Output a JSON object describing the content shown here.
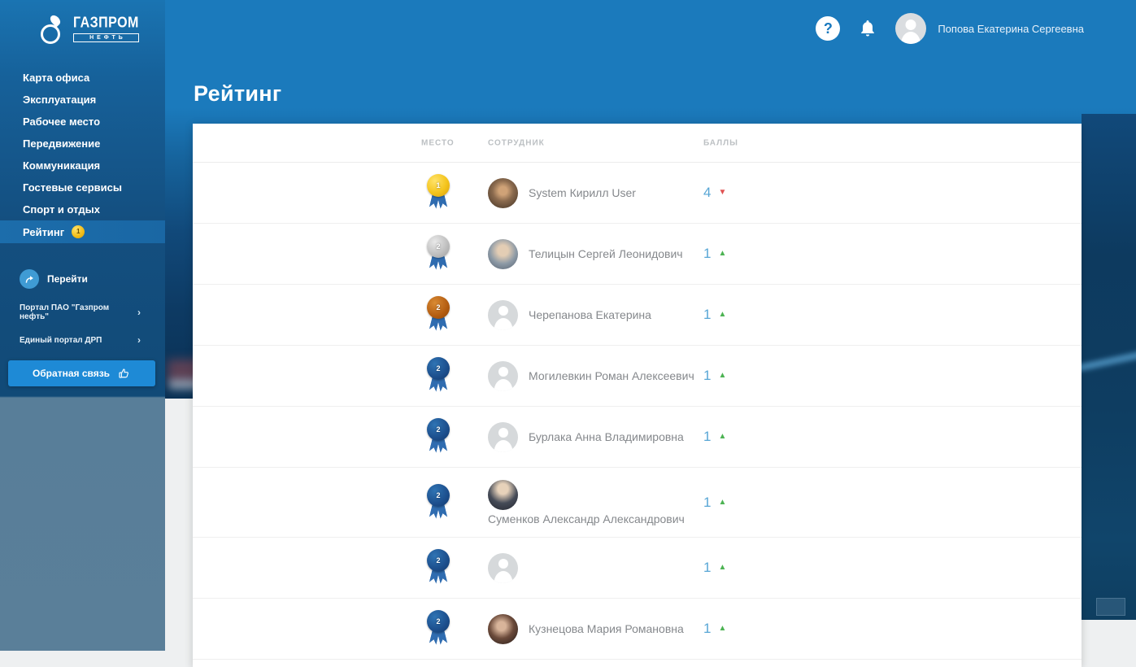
{
  "brand": {
    "name_top": "ГАЗПРОМ",
    "name_bottom": "НЕФТЬ"
  },
  "header": {
    "help_icon": "?",
    "user_name": "Попова Екатерина Сергеевна"
  },
  "sidebar": {
    "items": [
      {
        "label": "Карта офиса"
      },
      {
        "label": "Эксплуатация"
      },
      {
        "label": "Рабочее место"
      },
      {
        "label": "Передвижение"
      },
      {
        "label": "Коммуникация"
      },
      {
        "label": "Гостевые сервисы"
      },
      {
        "label": "Спорт и отдых"
      },
      {
        "label": "Рейтинг",
        "badge": "1",
        "active": true
      }
    ],
    "go_label": "Перейти",
    "external_links": [
      {
        "label": "Портал ПАО \"Газпром нефть\""
      },
      {
        "label": "Единый портал ДРП"
      }
    ],
    "feedback_label": "Обратная связь"
  },
  "page": {
    "title": "Рейтинг"
  },
  "table": {
    "columns": [
      "МЕСТО",
      "СОТРУДНИК",
      "БАЛЛЫ"
    ],
    "rows": [
      {
        "place": "1",
        "medal": "gold",
        "name": "System Кирилл User",
        "score": "4",
        "trend": "down",
        "avatar": "photo-1"
      },
      {
        "place": "2",
        "medal": "silver",
        "name": "Телицын Сергей Леонидович",
        "score": "1",
        "trend": "up",
        "avatar": "photo-2"
      },
      {
        "place": "2",
        "medal": "bronze",
        "name": "Черепанова Екатерина",
        "score": "1",
        "trend": "up",
        "avatar": "placeholder"
      },
      {
        "place": "2",
        "medal": "blue",
        "name": "Могилевкин Роман Алексеевич",
        "score": "1",
        "trend": "up",
        "avatar": "placeholder"
      },
      {
        "place": "2",
        "medal": "blue",
        "name": "Бурлака Анна Владимировна",
        "score": "1",
        "trend": "up",
        "avatar": "placeholder"
      },
      {
        "place": "2",
        "medal": "blue",
        "name": "Суменков Александр Александрович",
        "score": "1",
        "trend": "up",
        "avatar": "photo-3",
        "wrapped": true
      },
      {
        "place": "2",
        "medal": "blue",
        "name": "",
        "score": "1",
        "trend": "up",
        "avatar": "placeholder"
      },
      {
        "place": "2",
        "medal": "blue",
        "name": "Кузнецова Мария Романовна",
        "score": "1",
        "trend": "up",
        "avatar": "photo-4"
      }
    ]
  },
  "colors": {
    "header_blue": "#1878be",
    "sidebar_lower_blue": "#5a7f99",
    "score_blue": "#58a6d5",
    "trend_up_green": "#4db353",
    "trend_down_red": "#e05252",
    "gold": "#f2b91d",
    "silver": "#bdbdbd",
    "bronze": "#b35c10",
    "medal_blue": "#1c4e8c",
    "feedback_button_blue": "#1e8ad6"
  }
}
